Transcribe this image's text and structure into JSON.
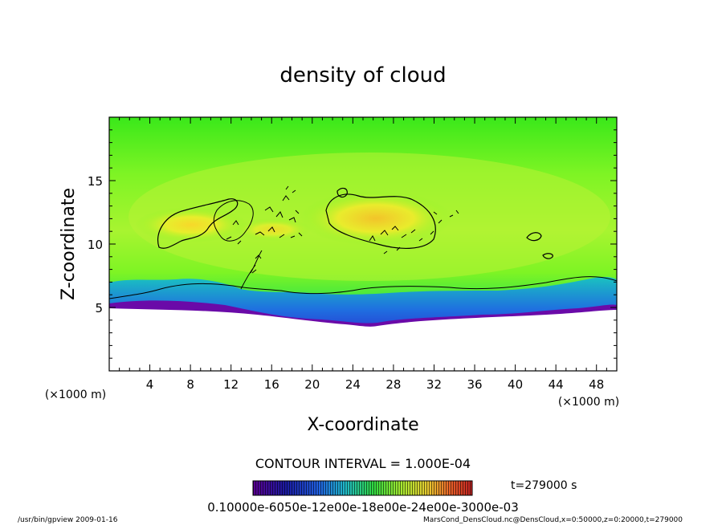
{
  "chart_data": {
    "type": "heatmap",
    "title": "density of cloud",
    "xlabel": "X-coordinate",
    "ylabel": "Z-coordinate",
    "x_unit": "(×1000 m)",
    "y_unit": "(×1000 m)",
    "xlim": [
      0,
      50
    ],
    "ylim": [
      0,
      20
    ],
    "x_ticks": [
      "4",
      "8",
      "12",
      "16",
      "20",
      "24",
      "28",
      "32",
      "36",
      "40",
      "44",
      "48"
    ],
    "y_ticks": [
      "5",
      "10",
      "15"
    ],
    "contour_interval": "CONTOUR INTERVAL = 1.000E-04",
    "time_label": "t=279000 s",
    "colorbar_labels_text": "0.10000e-6050e-12e00e-18e00e-24e00e-3000e-03",
    "colorbar_range": [
      0,
      0.0003
    ],
    "footer_left": "/usr/bin/gpview 2009-01-16",
    "footer_right": "MarsCond_DensCloud.nc@DensCloud,x=0:50000,z=0:20000,t=279000",
    "cloud_base_z": 5,
    "cloud_regions": [
      {
        "name": "left-lobe",
        "x_range": [
          5,
          12
        ],
        "z_range": [
          10.5,
          13
        ]
      },
      {
        "name": "center-core",
        "x_range": [
          21,
          31
        ],
        "z_range": [
          10.5,
          13.5
        ]
      }
    ],
    "colors": {
      "bg_green": "#49ef18",
      "light_green": "#8cf528",
      "yellow": "#f0e82a",
      "cyan": "#1ac2c0",
      "blue": "#1f3fd0",
      "purple": "#6a0aa8"
    }
  }
}
